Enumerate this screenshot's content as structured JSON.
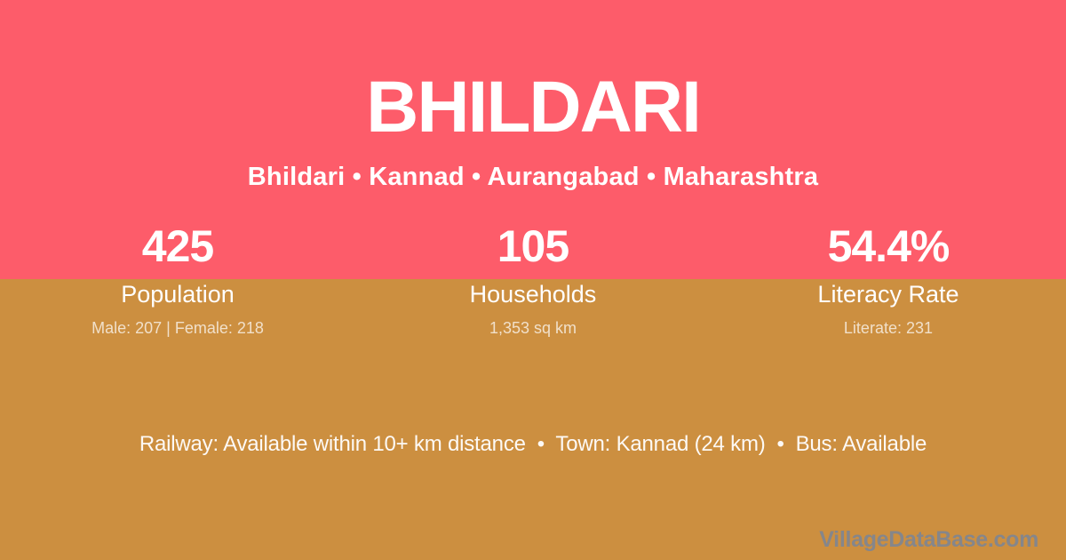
{
  "header": {
    "title": "BHILDARI",
    "breadcrumb": "Bhildari • Kannad • Aurangabad • Maharashtra"
  },
  "stats": [
    {
      "value": "425",
      "label": "Population",
      "detail": "Male: 207 | Female: 218"
    },
    {
      "value": "105",
      "label": "Households",
      "detail": "1,353 sq km"
    },
    {
      "value": "54.4%",
      "label": "Literacy Rate",
      "detail": "Literate: 231"
    }
  ],
  "footer": {
    "info": "Railway: Available within 10+ km distance  •  Town: Kannad (24 km)  •  Bus: Available",
    "watermark": "VillageDataBase.com"
  },
  "colors": {
    "top_bg": "#FD5C6A",
    "bottom_bg": "#CC8F40",
    "text": "#FFFFFF",
    "muted_text": "rgba(255,255,255,0.72)",
    "watermark": "#85868B"
  }
}
